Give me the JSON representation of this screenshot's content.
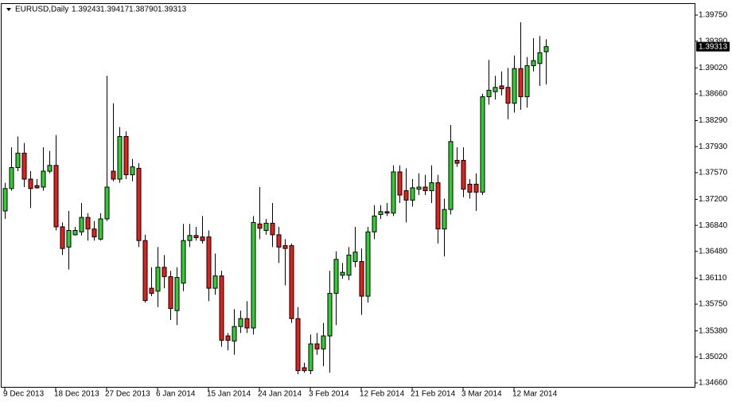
{
  "chart_data": {
    "type": "candlestick",
    "title": "EURUSD,Daily",
    "ohlc_labels": [
      "1.39243",
      "1.39417",
      "1.38790",
      "1.39313"
    ],
    "categories": [
      "9 Dec 2013",
      null,
      null,
      null,
      null,
      null,
      null,
      null,
      "18 Dec 2013",
      null,
      null,
      null,
      null,
      null,
      null,
      null,
      "27 Dec 2013",
      null,
      null,
      null,
      null,
      null,
      null,
      null,
      "6 Jan 2014",
      null,
      null,
      null,
      null,
      null,
      null,
      null,
      "15 Jan 2014",
      null,
      null,
      null,
      null,
      null,
      null,
      null,
      "24 Jan 2014",
      null,
      null,
      null,
      null,
      null,
      null,
      null,
      "3 Feb 2014",
      null,
      null,
      null,
      null,
      null,
      null,
      null,
      "12 Feb 2014",
      null,
      null,
      null,
      null,
      null,
      null,
      null,
      "21 Feb 2014",
      null,
      null,
      null,
      null,
      null,
      null,
      null,
      "3 Mar 2014",
      null,
      null,
      null,
      null,
      null,
      null,
      null,
      "12 Mar 2014",
      null,
      null,
      null,
      null,
      null
    ],
    "open": [
      1.3704,
      1.3735,
      1.3764,
      1.3784,
      1.3748,
      1.3739,
      1.3737,
      1.3759,
      1.3767,
      1.3682,
      1.3654,
      1.3671,
      1.3675,
      1.3695,
      1.3679,
      1.3665,
      1.3693,
      1.3759,
      1.3748,
      1.3807,
      1.3754,
      1.3763,
      1.3663,
      1.3597,
      1.3593,
      1.3626,
      1.3613,
      1.3566,
      1.3604,
      1.3663,
      1.367,
      1.3668,
      1.3668,
      1.3597,
      1.3614,
      1.3531,
      1.3524,
      1.3544,
      1.3555,
      1.3542,
      1.3686,
      1.3677,
      1.3687,
      1.3671,
      1.3656,
      1.3656,
      1.3555,
      1.3487,
      1.3483,
      1.352,
      1.3513,
      1.3531,
      1.359,
      1.3615,
      1.3615,
      1.3634,
      1.3634,
      1.3586,
      1.3675,
      1.3699,
      1.3703,
      1.3701,
      1.3758,
      1.3732,
      1.3719,
      1.3734,
      1.3737,
      1.3732,
      1.3743,
      1.3679,
      1.3706,
      1.3774,
      1.3774,
      1.3741,
      1.3741,
      1.373,
      1.3862,
      1.3869,
      1.3877,
      1.3875,
      1.3853,
      1.3901,
      1.3862,
      1.3905,
      1.3908,
      1.39243
    ],
    "high": [
      1.3743,
      1.3792,
      1.3807,
      1.3798,
      1.3759,
      1.3748,
      1.3792,
      1.3787,
      1.3809,
      1.3688,
      1.3704,
      1.3682,
      1.3715,
      1.3701,
      1.369,
      1.3701,
      1.3891,
      1.3853,
      1.382,
      1.3814,
      1.3776,
      1.377,
      1.3671,
      1.3626,
      1.3654,
      1.3643,
      1.3621,
      1.3626,
      1.3686,
      1.3686,
      1.3682,
      1.3697,
      1.3677,
      1.3645,
      1.3621,
      1.3535,
      1.3568,
      1.3566,
      1.3579,
      1.3697,
      1.3737,
      1.3693,
      1.3715,
      1.3682,
      1.3665,
      1.3659,
      1.3571,
      1.3494,
      1.3533,
      1.3535,
      1.3549,
      1.3621,
      1.3648,
      1.3632,
      1.3654,
      1.3682,
      1.3652,
      1.3682,
      1.3712,
      1.3712,
      1.3715,
      1.3767,
      1.3767,
      1.3763,
      1.3748,
      1.3756,
      1.3754,
      1.3767,
      1.3754,
      1.3721,
      1.3823,
      1.3792,
      1.3792,
      1.3748,
      1.3756,
      1.3866,
      1.3913,
      1.3891,
      1.3897,
      1.3902,
      1.3919,
      1.3965,
      1.3917,
      1.3943,
      1.3946,
      1.39417
    ],
    "low": [
      1.3693,
      1.3732,
      1.3759,
      1.3737,
      1.3708,
      1.3735,
      1.3732,
      1.3756,
      1.3677,
      1.3643,
      1.3623,
      1.367,
      1.367,
      1.3663,
      1.3663,
      1.3663,
      1.369,
      1.3745,
      1.3743,
      1.3748,
      1.3745,
      1.3654,
      1.3577,
      1.3586,
      1.3571,
      1.3597,
      1.3553,
      1.3546,
      1.3593,
      1.3654,
      1.3663,
      1.3659,
      1.3579,
      1.3588,
      1.3516,
      1.3511,
      1.3505,
      1.3535,
      1.3535,
      1.3533,
      1.3665,
      1.3671,
      1.3654,
      1.3632,
      1.3601,
      1.3549,
      1.3478,
      1.348,
      1.3478,
      1.3505,
      1.3489,
      1.348,
      1.3546,
      1.361,
      1.3608,
      1.3626,
      1.356,
      1.3577,
      1.3665,
      1.3693,
      1.3697,
      1.3697,
      1.3715,
      1.3688,
      1.371,
      1.3726,
      1.3726,
      1.3715,
      1.3659,
      1.3641,
      1.3699,
      1.3765,
      1.3723,
      1.3721,
      1.3704,
      1.3726,
      1.3851,
      1.3858,
      1.3864,
      1.3831,
      1.384,
      1.3844,
      1.3847,
      1.3897,
      1.3877,
      1.3879
    ],
    "close": [
      1.3735,
      1.3764,
      1.3784,
      1.3748,
      1.3735,
      1.3736,
      1.3759,
      1.3767,
      1.3682,
      1.3652,
      1.3677,
      1.3677,
      1.3695,
      1.3679,
      1.3668,
      1.3693,
      1.3737,
      1.3748,
      1.3807,
      1.3754,
      1.3765,
      1.3663,
      1.358,
      1.359,
      1.3626,
      1.3613,
      1.3569,
      1.3612,
      1.3663,
      1.367,
      1.3667,
      1.3663,
      1.3597,
      1.3614,
      1.3525,
      1.3525,
      1.3544,
      1.3555,
      1.3542,
      1.3688,
      1.368,
      1.3687,
      1.3671,
      1.3654,
      1.3652,
      1.3555,
      1.3483,
      1.3483,
      1.352,
      1.3513,
      1.3531,
      1.359,
      1.3637,
      1.3619,
      1.3643,
      1.3647,
      1.3586,
      1.3675,
      1.3697,
      1.3703,
      1.3701,
      1.3758,
      1.3726,
      1.3719,
      1.3736,
      1.3737,
      1.3732,
      1.3743,
      1.3679,
      1.3706,
      1.38,
      1.377,
      1.3734,
      1.373,
      1.373,
      1.3862,
      1.3871,
      1.3875,
      1.3873,
      1.3853,
      1.3901,
      1.3862,
      1.3905,
      1.3912,
      1.3923,
      1.39313
    ],
    "up_color": "#32cd32",
    "down_color": "#e3211c",
    "ylim": [
      1.34594,
      1.39904
    ],
    "yticks": [
      {
        "value": 1.3975,
        "label": "1.39750"
      },
      {
        "value": 1.3939,
        "label": "1.39390"
      },
      {
        "value": 1.3902,
        "label": "1.39020"
      },
      {
        "value": 1.3866,
        "label": "1.38660"
      },
      {
        "value": 1.3829,
        "label": "1.38290"
      },
      {
        "value": 1.3793,
        "label": "1.37930"
      },
      {
        "value": 1.3757,
        "label": "1.37570"
      },
      {
        "value": 1.372,
        "label": "1.37200"
      },
      {
        "value": 1.3684,
        "label": "1.36840"
      },
      {
        "value": 1.3648,
        "label": "1.36480"
      },
      {
        "value": 1.3611,
        "label": "1.36110"
      },
      {
        "value": 1.3575,
        "label": "1.35750"
      },
      {
        "value": 1.3538,
        "label": "1.35380"
      },
      {
        "value": 1.3502,
        "label": "1.35020"
      },
      {
        "value": 1.3466,
        "label": "1.34660"
      }
    ],
    "last_price": {
      "value": 1.39313,
      "label": "1.39313"
    }
  }
}
